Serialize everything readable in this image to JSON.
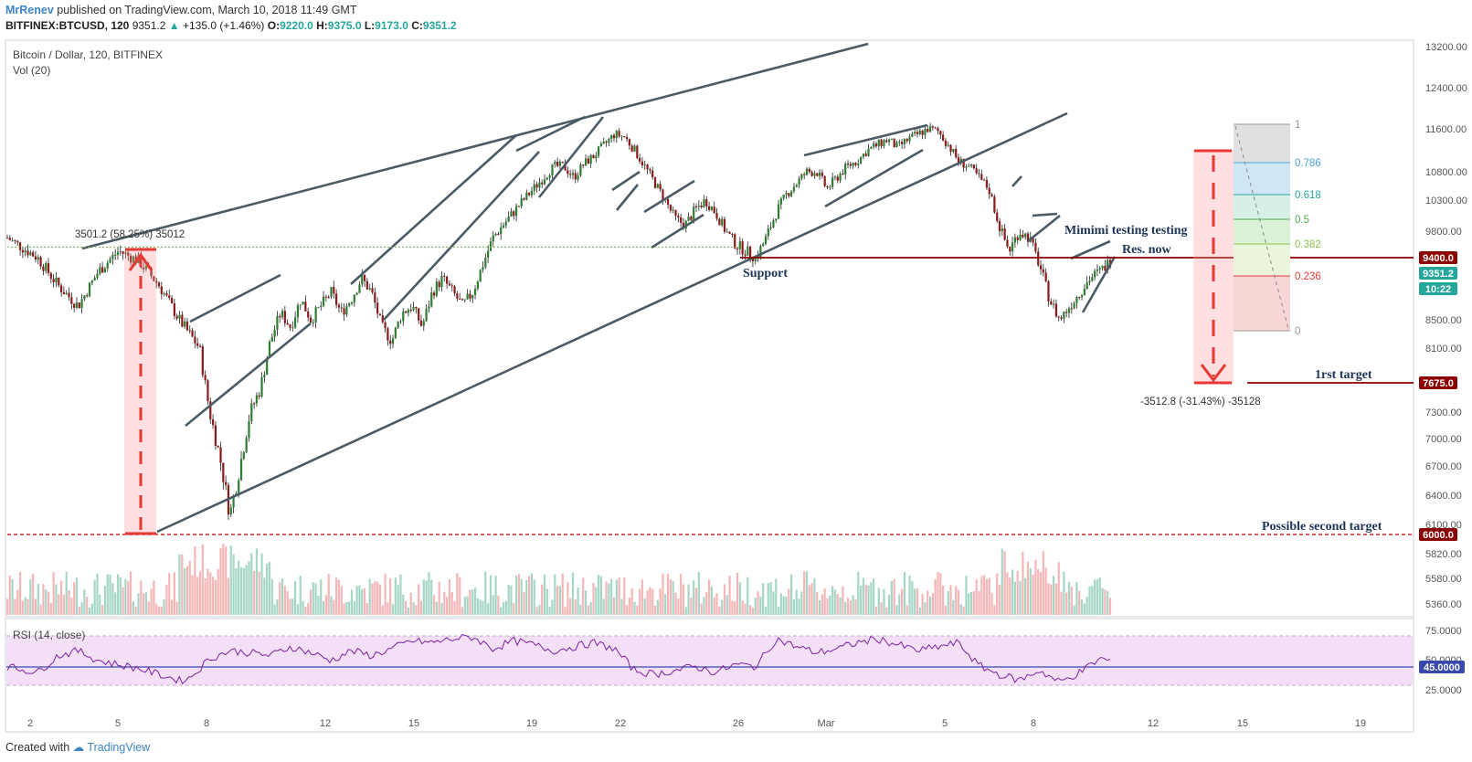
{
  "header": {
    "user": "MrRenev",
    "published": "published on TradingView.com, March 10, 2018 11:49 GMT",
    "symbol": "BITFINEX:BTCUSD, 120",
    "last": "9351.2",
    "change": "+135.0 (+1.46%)",
    "o_label": "O:",
    "o": "9220.0",
    "h_label": "H:",
    "h": "9375.0",
    "l_label": "L:",
    "l": "9173.0",
    "c_label": "C:",
    "c": "9351.2"
  },
  "legend": {
    "title": "Bitcoin / Dollar, 120, BITFINEX",
    "vol": "Vol (20)",
    "rsi": "RSI (14, close)"
  },
  "footer": {
    "created": "Created with",
    "brand": "TradingView"
  },
  "colors": {
    "up": "#26a69a",
    "down": "#ef5350",
    "trend": "#4a5b66",
    "accent": "#8b0000"
  },
  "chart_data": {
    "type": "candlestick",
    "price_range": [
      5200,
      13300
    ],
    "y_ticks": [
      13200,
      12400,
      11600,
      10800,
      10300,
      9800,
      8500,
      8100,
      7300,
      7000,
      6700,
      6400,
      6100,
      5820,
      5580,
      5360
    ],
    "y_tick_labels": [
      "13200.00",
      "12400.00",
      "11600.00",
      "10800.00",
      "10300.00",
      "9800.00",
      "8500.00",
      "8100.00",
      "7300.00",
      "7000.00",
      "6700.00",
      "6400.00",
      "6100.00",
      "5820.00",
      "5580.00",
      "5360.00"
    ],
    "x_labels": [
      "2",
      "5",
      "8",
      "12",
      "15",
      "19",
      "22",
      "26",
      "Mar",
      "5",
      "8",
      "12",
      "15",
      "19"
    ],
    "price_tags": [
      {
        "label": "9400.0",
        "price": 9400,
        "color": "#8b0000"
      },
      {
        "label": "9351.2",
        "price": 9351.2,
        "color": "#26a69a"
      },
      {
        "label": "10:22",
        "price": 9160,
        "color": "#26a69a"
      },
      {
        "label": "7675.0",
        "price": 7675,
        "color": "#8b0000"
      },
      {
        "label": "6000.0",
        "price": 6000,
        "color": "#8b0000"
      }
    ],
    "levels": [
      {
        "price": 9400,
        "label": "Res. now"
      },
      {
        "price": 7675,
        "label": "1rst target"
      },
      {
        "price": 6000,
        "label": "Possible second target"
      }
    ],
    "annotations": {
      "support": "Support",
      "testing": "Mimimi testing testing",
      "up_measure": "3501.2 (58.25%) 35012",
      "down_measure": "-3512.8 (-31.43%) -35128"
    },
    "fib": [
      {
        "level": "1",
        "color": "#999999"
      },
      {
        "level": "0.786",
        "color": "#4aa3df"
      },
      {
        "level": "0.618",
        "color": "#26a69a"
      },
      {
        "level": "0.5",
        "color": "#4caf50"
      },
      {
        "level": "0.382",
        "color": "#8bc34a"
      },
      {
        "level": "0.236",
        "color": "#e53935"
      },
      {
        "level": "0",
        "color": "#999999"
      }
    ],
    "rsi": {
      "ticks": [
        "75.0000",
        "50.0000",
        "25.0000"
      ],
      "current": "45.0000"
    },
    "price_path": [
      [
        0,
        9700
      ],
      [
        3,
        9400
      ],
      [
        5,
        9000
      ],
      [
        7,
        8700
      ],
      [
        9,
        9200
      ],
      [
        11,
        9500
      ],
      [
        13,
        9350
      ],
      [
        15,
        9000
      ],
      [
        17,
        8500
      ],
      [
        19,
        8100
      ],
      [
        20,
        7300
      ],
      [
        21,
        6800
      ],
      [
        22,
        6200
      ],
      [
        23,
        6700
      ],
      [
        24,
        7300
      ],
      [
        25,
        7600
      ],
      [
        26,
        8200
      ],
      [
        27,
        8600
      ],
      [
        28,
        8400
      ],
      [
        29,
        8800
      ],
      [
        30,
        8500
      ],
      [
        31,
        8700
      ],
      [
        32,
        8900
      ],
      [
        33,
        8600
      ],
      [
        34,
        8800
      ],
      [
        35,
        9100
      ],
      [
        36,
        8900
      ],
      [
        37,
        8400
      ],
      [
        38,
        8200
      ],
      [
        39,
        8600
      ],
      [
        40,
        8700
      ],
      [
        41,
        8400
      ],
      [
        42,
        8900
      ],
      [
        43,
        9100
      ],
      [
        44,
        8900
      ],
      [
        45,
        8700
      ],
      [
        46,
        8900
      ],
      [
        47,
        9300
      ],
      [
        48,
        9700
      ],
      [
        49,
        9900
      ],
      [
        50,
        10100
      ],
      [
        51,
        10300
      ],
      [
        52,
        10500
      ],
      [
        53,
        10700
      ],
      [
        54,
        10900
      ],
      [
        55,
        10900
      ],
      [
        56,
        10700
      ],
      [
        57,
        10950
      ],
      [
        58,
        11100
      ],
      [
        59,
        11300
      ],
      [
        60,
        11500
      ],
      [
        61,
        11450
      ],
      [
        62,
        11200
      ],
      [
        63,
        10900
      ],
      [
        64,
        10600
      ],
      [
        65,
        10300
      ],
      [
        66,
        10000
      ],
      [
        67,
        9900
      ],
      [
        68,
        10150
      ],
      [
        69,
        10300
      ],
      [
        70,
        10100
      ],
      [
        71,
        9800
      ],
      [
        72,
        9600
      ],
      [
        73,
        9500
      ],
      [
        74,
        9400
      ],
      [
        75,
        9700
      ],
      [
        76,
        10100
      ],
      [
        77,
        10400
      ],
      [
        78,
        10600
      ],
      [
        79,
        10800
      ],
      [
        80,
        10800
      ],
      [
        81,
        10500
      ],
      [
        82,
        10700
      ],
      [
        83,
        10900
      ],
      [
        84,
        11000
      ],
      [
        85,
        11200
      ],
      [
        86,
        11300
      ],
      [
        87,
        11400
      ],
      [
        88,
        11250
      ],
      [
        89,
        11400
      ],
      [
        90,
        11500
      ],
      [
        91,
        11600
      ],
      [
        92,
        11550
      ],
      [
        93,
        11300
      ],
      [
        94,
        11000
      ],
      [
        95,
        10900
      ],
      [
        96,
        10700
      ],
      [
        97,
        10500
      ],
      [
        98,
        9900
      ],
      [
        99,
        9500
      ],
      [
        100,
        9800
      ],
      [
        101,
        9700
      ],
      [
        102,
        9300
      ],
      [
        103,
        8800
      ],
      [
        104,
        8500
      ],
      [
        105,
        8700
      ],
      [
        106,
        8900
      ],
      [
        107,
        9100
      ],
      [
        108,
        9200
      ],
      [
        109,
        9351
      ]
    ],
    "rsi_path": [
      [
        0,
        44
      ],
      [
        3,
        38
      ],
      [
        5,
        55
      ],
      [
        7,
        60
      ],
      [
        9,
        50
      ],
      [
        11,
        46
      ],
      [
        13,
        42
      ],
      [
        15,
        36
      ],
      [
        17,
        30
      ],
      [
        18,
        32
      ],
      [
        20,
        52
      ],
      [
        22,
        60
      ],
      [
        24,
        58
      ],
      [
        26,
        55
      ],
      [
        28,
        64
      ],
      [
        30,
        58
      ],
      [
        32,
        50
      ],
      [
        34,
        60
      ],
      [
        36,
        55
      ],
      [
        38,
        62
      ],
      [
        40,
        70
      ],
      [
        42,
        68
      ],
      [
        44,
        72
      ],
      [
        46,
        74
      ],
      [
        48,
        62
      ],
      [
        50,
        70
      ],
      [
        52,
        66
      ],
      [
        54,
        60
      ],
      [
        56,
        64
      ],
      [
        58,
        68
      ],
      [
        60,
        62
      ],
      [
        62,
        40
      ],
      [
        64,
        36
      ],
      [
        66,
        40
      ],
      [
        68,
        44
      ],
      [
        70,
        38
      ],
      [
        72,
        46
      ],
      [
        74,
        44
      ],
      [
        76,
        72
      ],
      [
        78,
        64
      ],
      [
        80,
        58
      ],
      [
        82,
        62
      ],
      [
        84,
        68
      ],
      [
        86,
        72
      ],
      [
        88,
        66
      ],
      [
        90,
        60
      ],
      [
        92,
        64
      ],
      [
        94,
        68
      ],
      [
        96,
        45
      ],
      [
        98,
        36
      ],
      [
        100,
        30
      ],
      [
        102,
        40
      ],
      [
        104,
        28
      ],
      [
        106,
        38
      ],
      [
        108,
        52
      ],
      [
        109,
        50
      ]
    ]
  }
}
